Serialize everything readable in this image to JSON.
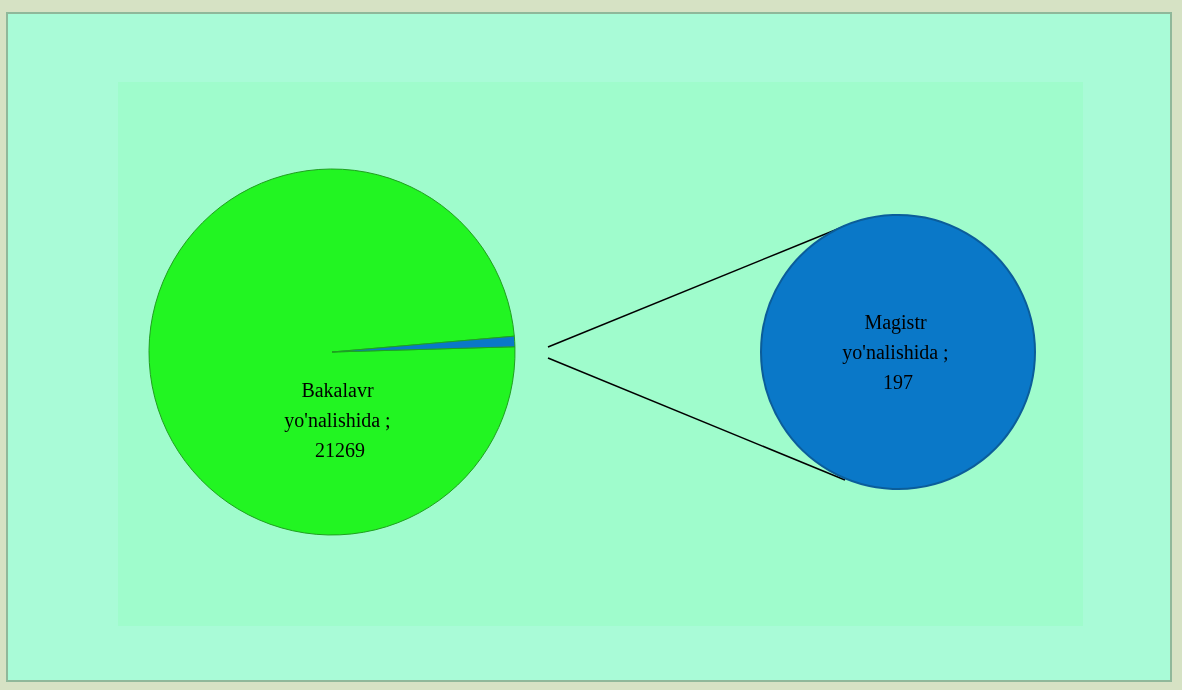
{
  "chart_data": [
    {
      "type": "pie",
      "categories": [
        "Bakalavr yo'nalishida",
        null
      ],
      "values": [
        21269,
        197
      ],
      "colors": [
        "#22f522",
        "#0a78c8"
      ],
      "value_labels": [
        "; 21269",
        null
      ],
      "legend": false
    },
    {
      "type": "pie",
      "categories": [
        "Magistr yo'nalishida"
      ],
      "values": [
        197
      ],
      "colors": [
        "#0a78c8"
      ],
      "value_labels": [
        "; 197"
      ],
      "legend": false
    }
  ]
}
